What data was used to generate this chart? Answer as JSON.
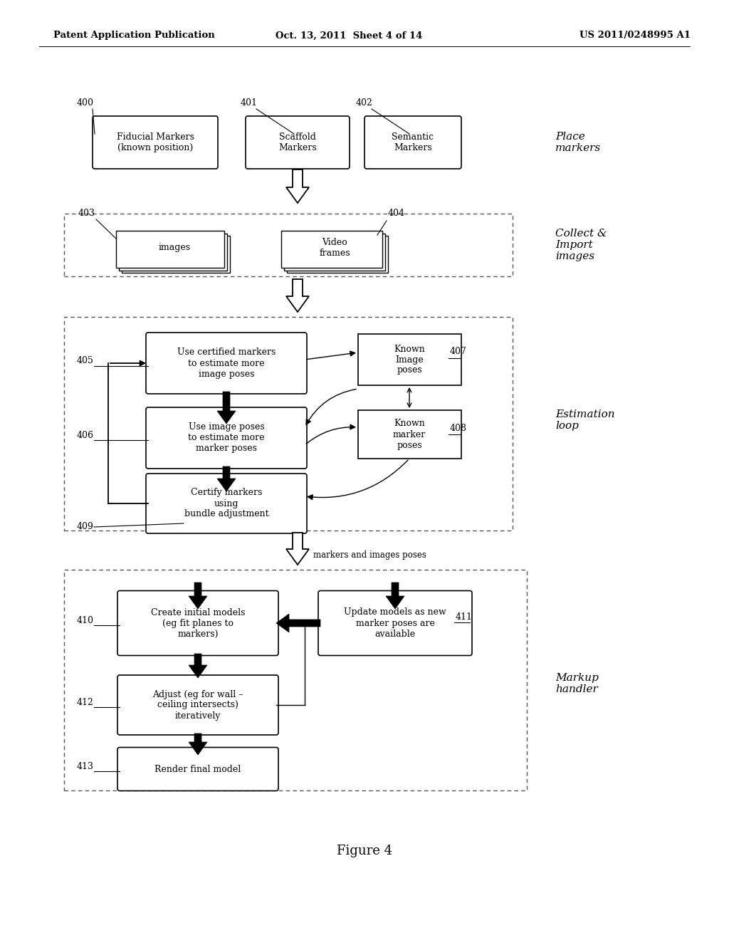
{
  "bg_color": "#ffffff",
  "header_left": "Patent Application Publication",
  "header_center": "Oct. 13, 2011  Sheet 4 of 14",
  "header_right": "US 2011/0248995 A1",
  "figure_label": "Figure 4"
}
